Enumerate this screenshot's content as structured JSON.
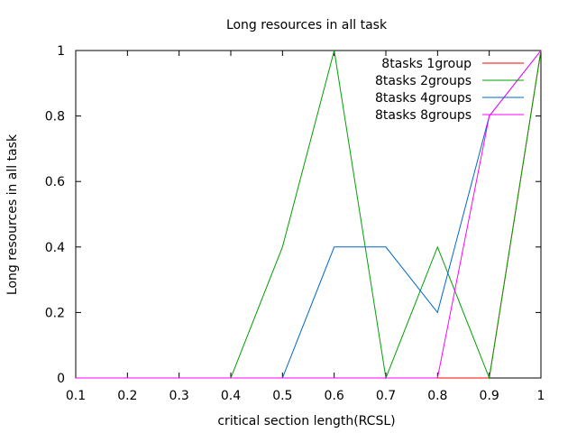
{
  "chart_data": {
    "type": "line",
    "title": "Long resources in all task",
    "xlabel": "critical section length(RCSL)",
    "ylabel": "Long resources in all task",
    "xlim": [
      0.1,
      1
    ],
    "ylim": [
      0,
      1
    ],
    "x_ticks": [
      "0.1",
      "0.2",
      "0.3",
      "0.4",
      "0.5",
      "0.6",
      "0.7",
      "0.8",
      "0.9",
      "1"
    ],
    "y_ticks": [
      "0",
      "0.2",
      "0.4",
      "0.6",
      "0.8",
      "1"
    ],
    "grid": false,
    "legend_position": "top-right",
    "x": [
      0.1,
      0.2,
      0.3,
      0.4,
      0.5,
      0.6,
      0.7,
      0.8,
      0.9,
      1.0
    ],
    "series": [
      {
        "name": "8tasks 1group",
        "color": "#ff0000",
        "values": [
          0,
          0,
          0,
          0,
          0,
          0,
          0,
          0,
          0,
          1
        ]
      },
      {
        "name": "8tasks 2groups",
        "color": "#00a000",
        "values": [
          0,
          0,
          0,
          0,
          0.4,
          1,
          0,
          0.4,
          0,
          1
        ]
      },
      {
        "name": "8tasks 4groups",
        "color": "#0066cc",
        "values": [
          0,
          0,
          0,
          0,
          0,
          0.4,
          0.4,
          0.2,
          0.8,
          1
        ]
      },
      {
        "name": "8tasks 8groups",
        "color": "#ff00ff",
        "values": [
          0,
          0,
          0,
          0,
          0,
          0,
          0,
          0,
          0.8,
          1
        ]
      }
    ]
  }
}
